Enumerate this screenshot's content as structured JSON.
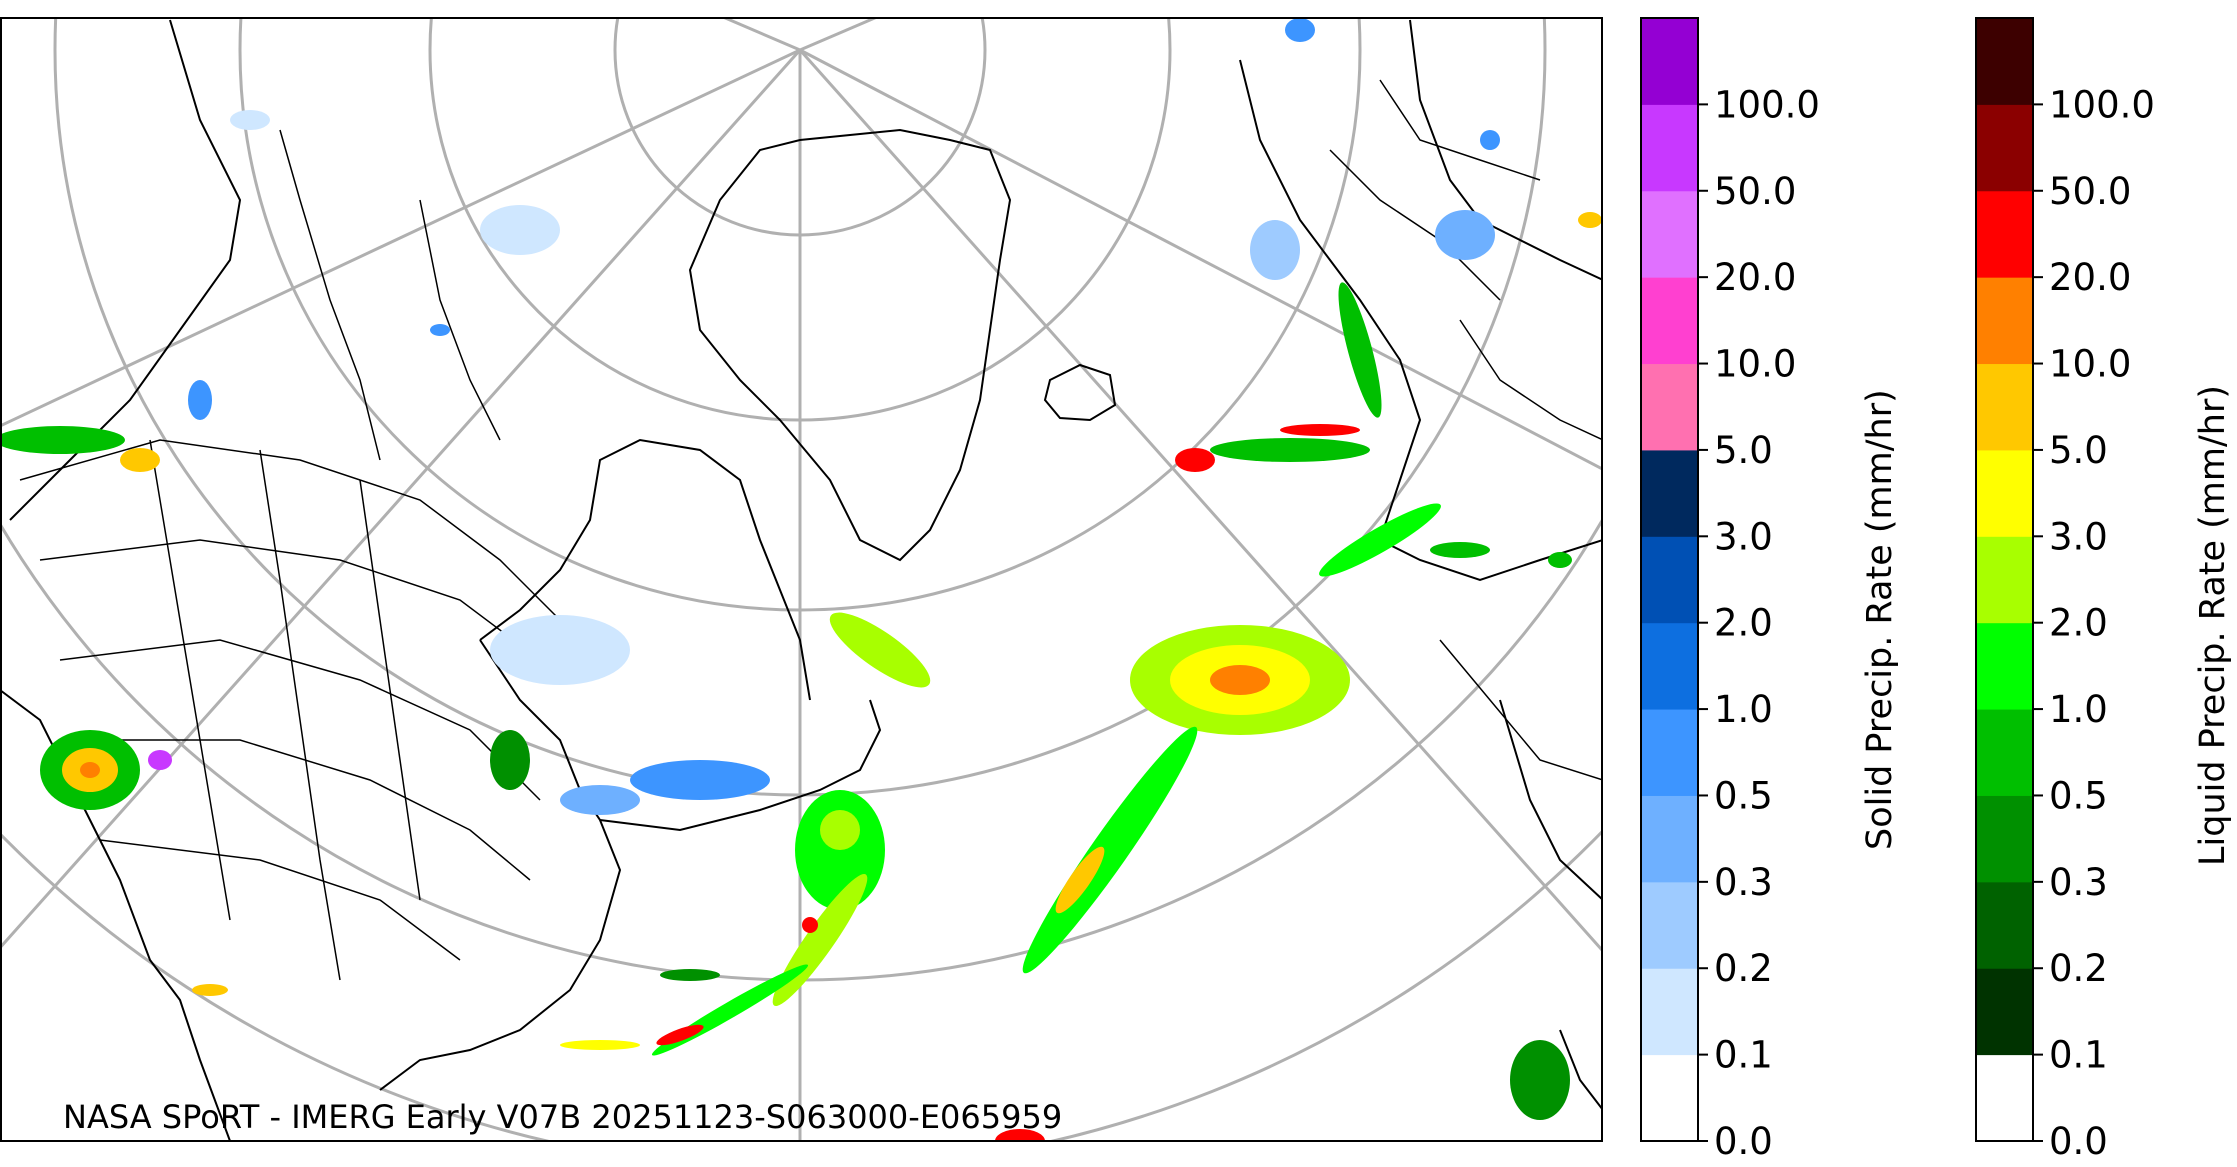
{
  "map": {
    "credit": "NASA SPoRT - IMERG Early V07B 20251123-S063000-E065959"
  },
  "colorbars": {
    "solid": {
      "title": "Solid Precip. Rate (mm/hr)",
      "ticks": [
        "0.0",
        "0.1",
        "0.2",
        "0.3",
        "0.5",
        "1.0",
        "2.0",
        "3.0",
        "5.0",
        "10.0",
        "20.0",
        "50.0",
        "100.0"
      ],
      "colors": [
        "#ffffff",
        "#cfe7ff",
        "#9ecbff",
        "#6eb0ff",
        "#3d95ff",
        "#0d6fe0",
        "#0050b4",
        "#00295e",
        "#ff70b0",
        "#ff40d0",
        "#e070ff",
        "#c838ff",
        "#9400d3"
      ]
    },
    "liquid": {
      "title": "Liquid Precip. Rate (mm/hr)",
      "ticks": [
        "0.0",
        "0.1",
        "0.2",
        "0.3",
        "0.5",
        "1.0",
        "2.0",
        "3.0",
        "5.0",
        "10.0",
        "20.0",
        "50.0",
        "100.0"
      ],
      "colors": [
        "#ffffff",
        "#003300",
        "#006200",
        "#009000",
        "#00bf00",
        "#00ff00",
        "#a8ff00",
        "#ffff00",
        "#ffc800",
        "#ff8000",
        "#ff0000",
        "#8b0000",
        "#3d0000"
      ]
    }
  }
}
